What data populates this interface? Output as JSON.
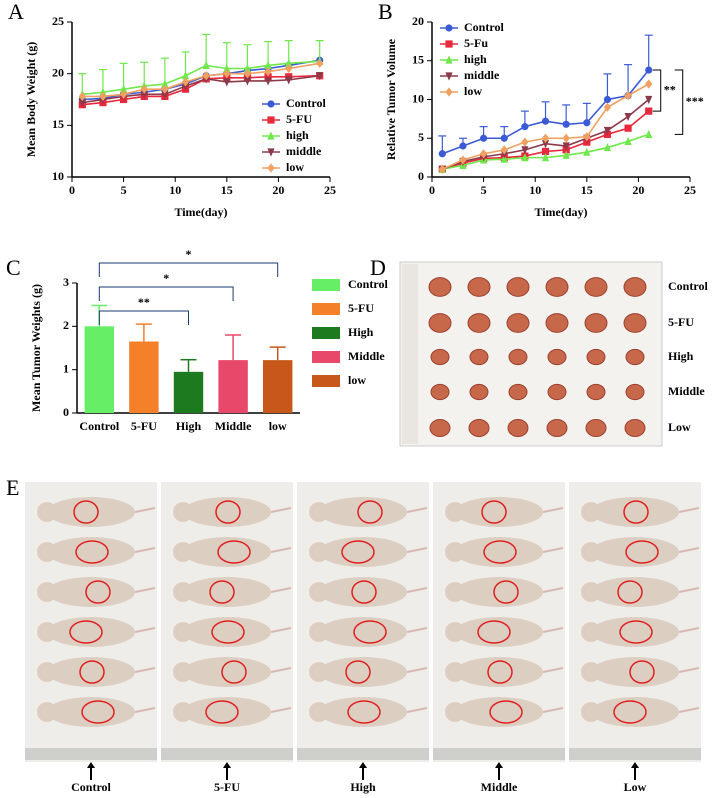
{
  "panel_letters": [
    "A",
    "B",
    "C",
    "D",
    "E"
  ],
  "chart_data": [
    {
      "type": "line",
      "xlabel": "Time(day)",
      "ylabel": "Mean Body Weight (g)",
      "xlim": [
        0,
        25
      ],
      "xticks": [
        0,
        5,
        10,
        15,
        20,
        25
      ],
      "ylim": [
        10,
        25
      ],
      "yticks": [
        10,
        15,
        20,
        25
      ],
      "legend": "right",
      "x": [
        1,
        3,
        5,
        7,
        9,
        11,
        13,
        15,
        17,
        19,
        21,
        24
      ],
      "series": [
        {
          "name": "Control",
          "color": "#3b5bd6",
          "marker": "circle",
          "values": [
            17.5,
            17.6,
            18.0,
            18.2,
            18.5,
            19.0,
            19.8,
            20.0,
            20.3,
            20.5,
            20.8,
            21.3
          ]
        },
        {
          "name": "5-FU",
          "color": "#e8283c",
          "marker": "square",
          "values": [
            17.0,
            17.2,
            17.5,
            17.8,
            17.8,
            18.5,
            19.5,
            19.6,
            19.6,
            19.7,
            19.7,
            19.8
          ]
        },
        {
          "name": "high",
          "color": "#6ee84a",
          "marker": "triangle",
          "values": [
            18.0,
            18.2,
            18.5,
            18.8,
            19.0,
            19.8,
            20.8,
            20.5,
            20.5,
            20.8,
            21.0,
            21.2
          ],
          "errors": [
            2.0,
            2.2,
            2.5,
            2.3,
            2.5,
            2.3,
            3.0,
            2.5,
            2.3,
            2.3,
            2.2,
            2.0
          ]
        },
        {
          "name": "middle",
          "color": "#8b3a4a",
          "marker": "down",
          "values": [
            17.2,
            17.5,
            17.8,
            18.0,
            18.0,
            18.8,
            19.5,
            19.2,
            19.3,
            19.3,
            19.4,
            19.8
          ]
        },
        {
          "name": "low",
          "color": "#f0a060",
          "marker": "diamond",
          "values": [
            17.8,
            17.8,
            18.0,
            18.5,
            18.5,
            19.2,
            19.8,
            20.0,
            20.0,
            20.2,
            20.5,
            21.0
          ]
        }
      ]
    },
    {
      "type": "line",
      "xlabel": "Time(day)",
      "ylabel": "Relative Tumor Volume",
      "xlim": [
        0,
        25
      ],
      "xticks": [
        0,
        5,
        10,
        15,
        20,
        25
      ],
      "ylim": [
        0,
        20
      ],
      "yticks": [
        0,
        5,
        10,
        15,
        20
      ],
      "legend": "upper-left",
      "x": [
        1,
        3,
        5,
        7,
        9,
        11,
        13,
        15,
        17,
        19,
        21
      ],
      "series": [
        {
          "name": "Control",
          "color": "#3b5bd6",
          "marker": "circle",
          "values": [
            3,
            4,
            5,
            5,
            6.5,
            7.2,
            6.8,
            7,
            10,
            10.5,
            13.8
          ],
          "errors": [
            2.3,
            1,
            1.5,
            1.5,
            2,
            2.5,
            2.5,
            2.5,
            3.3,
            4,
            4.5
          ]
        },
        {
          "name": "5-Fu",
          "color": "#e8283c",
          "marker": "square",
          "values": [
            1,
            1.8,
            2.4,
            2.5,
            2.7,
            3.3,
            3.5,
            4.5,
            5.5,
            6.3,
            8.5
          ]
        },
        {
          "name": "high",
          "color": "#6ee84a",
          "marker": "triangle",
          "values": [
            1,
            1.5,
            2.2,
            2.3,
            2.5,
            2.5,
            2.8,
            3.2,
            3.8,
            4.6,
            5.5
          ]
        },
        {
          "name": "middle",
          "color": "#8b3a4a",
          "marker": "down",
          "values": [
            1,
            2,
            2.6,
            3,
            3.5,
            4.3,
            4,
            5,
            6,
            7.8,
            10
          ]
        },
        {
          "name": "low",
          "color": "#f0a060",
          "marker": "diamond",
          "values": [
            1,
            2.2,
            3,
            3.5,
            4.5,
            5,
            5,
            5.2,
            9,
            10.5,
            12
          ]
        }
      ],
      "annotations": [
        {
          "label": "**",
          "between": [
            "Control",
            "5-Fu"
          ]
        },
        {
          "label": "***",
          "between": [
            "Control",
            "high"
          ]
        }
      ]
    },
    {
      "type": "bar",
      "ylabel": "Mean Tumor Weights (g)",
      "ylim": [
        0,
        3
      ],
      "yticks": [
        0,
        1,
        2,
        3
      ],
      "legend": "right",
      "categories": [
        "Control",
        "5-FU",
        "High",
        "Middle",
        "low"
      ],
      "values": [
        2.0,
        1.65,
        0.95,
        1.22,
        1.22
      ],
      "errors": [
        0.48,
        0.4,
        0.28,
        0.58,
        0.3
      ],
      "colors": [
        "#66ee66",
        "#f5802a",
        "#1e7a1e",
        "#e8486a",
        "#c8581a"
      ],
      "annotations": [
        {
          "label": "*",
          "between": [
            "Control",
            "low"
          ]
        },
        {
          "label": "*",
          "between": [
            "Control",
            "Middle"
          ]
        },
        {
          "label": "**",
          "between": [
            "Control",
            "High"
          ]
        }
      ]
    }
  ],
  "photo_panels": {
    "D": {
      "labels": [
        "Control",
        "5-FU",
        "High",
        "Middle",
        "Low"
      ]
    },
    "E": {
      "labels": [
        "Control",
        "5-FU",
        "High",
        "Middle",
        "Low"
      ]
    }
  }
}
